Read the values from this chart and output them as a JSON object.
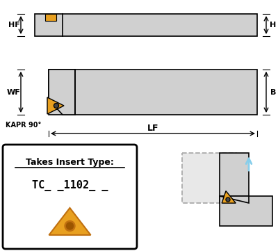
{
  "bg_color": "#ffffff",
  "tool_gray": "#d0d0d0",
  "tool_border": "#000000",
  "insert_color": "#E8A020",
  "insert_dark": "#c07010",
  "insert_border": "#000000",
  "arrow_color": "#87CEEB",
  "dashed_color": "#aaaaaa",
  "label_HF": "HF",
  "label_H": "H",
  "label_WF": "WF",
  "label_B": "B",
  "label_LF": "LF",
  "label_KAPR": "KAPR 90°",
  "insert_type_title": "Takes Insert Type:",
  "insert_type_code": "TC_ _1102_ _"
}
